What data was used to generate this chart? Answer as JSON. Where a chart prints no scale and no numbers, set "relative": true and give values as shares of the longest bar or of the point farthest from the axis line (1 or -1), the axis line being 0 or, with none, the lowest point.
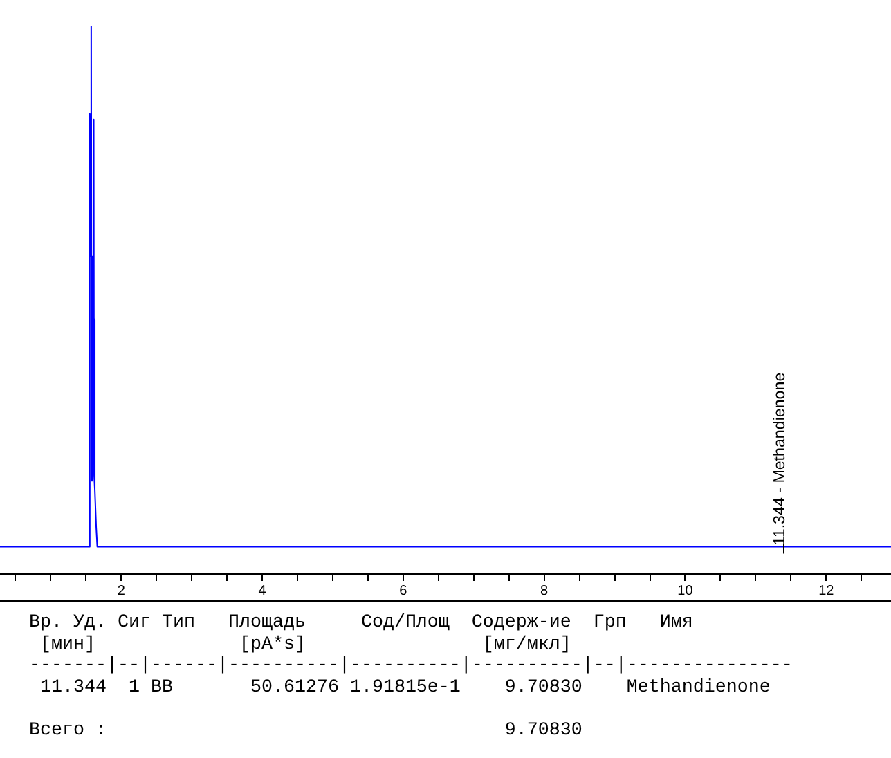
{
  "chart_data": {
    "type": "line",
    "relative": true,
    "color": "#0000ff",
    "x": [
      0.28,
      1.55,
      1.554,
      1.554,
      1.565,
      1.574,
      1.58,
      1.585,
      1.59,
      1.595,
      1.6,
      1.61,
      1.615,
      1.62,
      1.63,
      1.645,
      1.66,
      12.92
    ],
    "values": [
      0.05,
      0.05,
      0.58,
      0.84,
      0.58,
      1.0,
      0.17,
      0.58,
      0.17,
      0.58,
      0.2,
      0.83,
      0.18,
      0.465,
      0.155,
      0.085,
      0.05,
      0.05
    ],
    "xlim": [
      0.28,
      12.92
    ],
    "xticks": [
      {
        "value": 0.5,
        "label": null
      },
      {
        "value": 1,
        "label": null
      },
      {
        "value": 1.5,
        "label": null
      },
      2,
      {
        "value": 2.5,
        "label": null
      },
      {
        "value": 3,
        "label": null
      },
      {
        "value": 3.5,
        "label": null
      },
      4,
      {
        "value": 4.5,
        "label": null
      },
      {
        "value": 5,
        "label": null
      },
      {
        "value": 5.5,
        "label": null
      },
      6,
      {
        "value": 6.5,
        "label": null
      },
      {
        "value": 7,
        "label": null
      },
      {
        "value": 7.5,
        "label": null
      },
      8,
      {
        "value": 8.5,
        "label": null
      },
      {
        "value": 9,
        "label": null
      },
      {
        "value": 9.5,
        "label": null
      },
      10,
      {
        "value": 10.5,
        "label": null
      },
      {
        "value": 11,
        "label": null
      },
      {
        "value": 11.5,
        "label": null
      },
      12,
      {
        "value": 12.5,
        "label": null
      }
    ],
    "annotations": [
      {
        "text": "11.344 - Methandienone",
        "x": 11.344,
        "y": 0.05
      },
      "Вр. Уд. Сиг Тип   Площадь     Сод/Площ  Содерж-ие  Грп   Имя",
      " [мин]             [pA*s]                [мг/мкл]",
      "-------|--|------|----------|----------|----------|--|---------------",
      " 11.344  1 BB       50.61276 1.91815e-1    9.70830    Methandienone",
      "Всего :                                    9.70830"
    ]
  }
}
